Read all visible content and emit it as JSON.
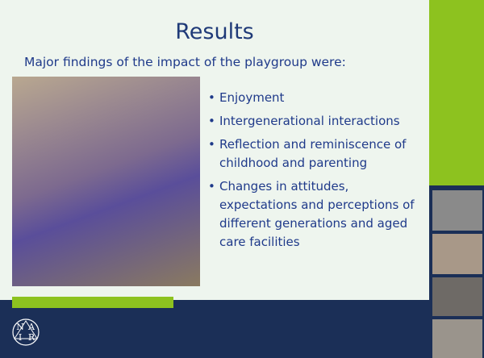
{
  "slide": {
    "title": "Results",
    "subtitle": "Major findings of the impact of the playgroup were:",
    "bullets": [
      "Enjoyment",
      "Intergenerational interactions",
      "Reflection and reminiscence of childhood and parenting",
      "Changes in attitudes, expectations and perceptions of different generations and aged care facilities"
    ],
    "logo": [
      "N",
      "A",
      "R",
      "I"
    ]
  }
}
